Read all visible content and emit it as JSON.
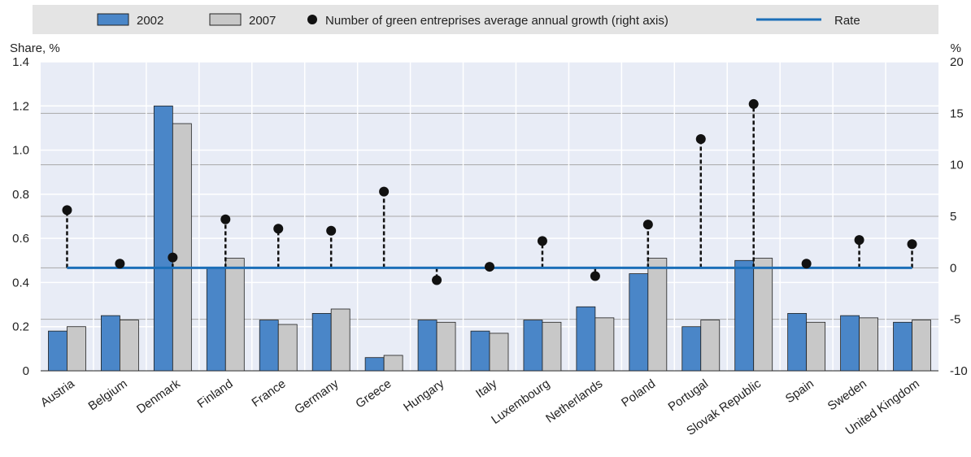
{
  "chart_data": {
    "type": "bar",
    "categories": [
      "Austria",
      "Belgium",
      "Denmark",
      "Finland",
      "France",
      "Germany",
      "Greece",
      "Hungary",
      "Italy",
      "Luxembourg",
      "Netherlands",
      "Poland",
      "Portugal",
      "Slovak Republic",
      "Spain",
      "Sweden",
      "United Kingdom"
    ],
    "series": [
      {
        "name": "2002",
        "type": "bar",
        "axis": "left",
        "color": "#4a86c8",
        "values": [
          0.18,
          0.25,
          1.2,
          0.47,
          0.23,
          0.26,
          0.06,
          0.23,
          0.18,
          0.23,
          0.29,
          0.44,
          0.2,
          0.5,
          0.26,
          0.25,
          0.22
        ]
      },
      {
        "name": "2007",
        "type": "bar",
        "axis": "left",
        "color": "#c8c8c8",
        "values": [
          0.2,
          0.23,
          1.12,
          0.51,
          0.21,
          0.28,
          0.07,
          0.22,
          0.17,
          0.22,
          0.24,
          0.51,
          0.23,
          0.51,
          0.22,
          0.24,
          0.23
        ]
      },
      {
        "name": "Number of green entreprises average annual growth (right axis)",
        "type": "dot",
        "axis": "right",
        "color": "#111111",
        "values": [
          5.6,
          0.4,
          1.0,
          4.7,
          3.8,
          3.6,
          7.4,
          -1.2,
          0.1,
          2.6,
          -0.8,
          4.2,
          12.5,
          15.9,
          0.4,
          2.7,
          2.3
        ]
      },
      {
        "name": "Rate",
        "type": "line",
        "axis": "right",
        "color": "#1c6fb8",
        "value": 0
      }
    ],
    "ylabel_left": "Share, %",
    "ylabel_right": "%",
    "ylim_left": [
      0,
      1.4
    ],
    "yticks_left": [
      "0",
      "0.2",
      "0.4",
      "0.6",
      "0.8",
      "1.0",
      "1.2",
      "1.4"
    ],
    "ylim_right": [
      -10,
      20
    ],
    "yticks_right": [
      "-10",
      "-5",
      "0",
      "5",
      "10",
      "15",
      "20"
    ],
    "grid": true,
    "legend_position": "top",
    "plot_background": "#e8ecf6"
  }
}
